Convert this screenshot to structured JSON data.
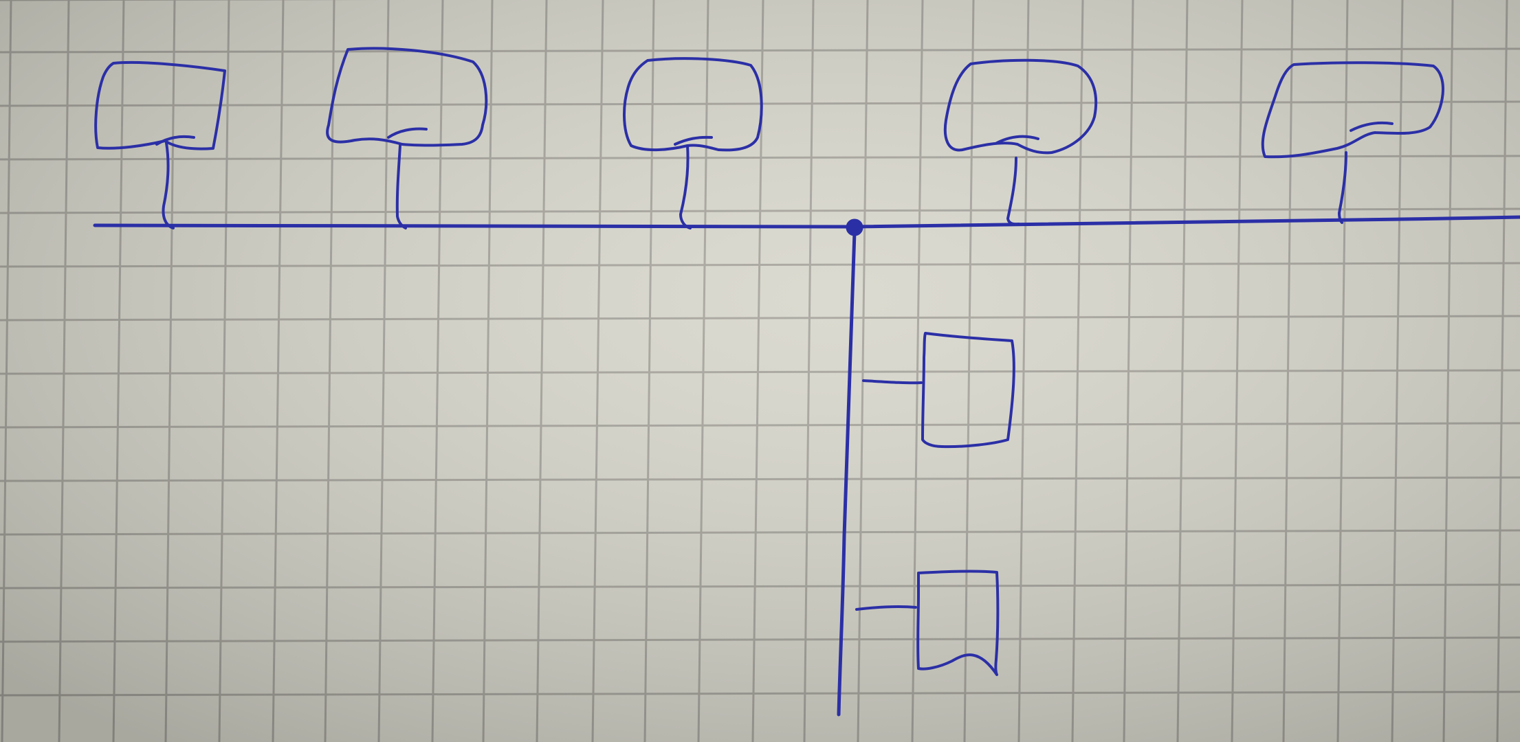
{
  "colors": {
    "paper": "#d8d7cc",
    "paper_shadow": "#9f9d92",
    "grid": "#a6a49c",
    "ink": "#2b2fa6"
  },
  "diagram": {
    "kind": "bus-topology-sketch",
    "main_bus": {
      "tapped_nodes": [
        {
          "id": "node-1",
          "shape": "flag-box"
        },
        {
          "id": "node-2",
          "shape": "flag-box"
        },
        {
          "id": "node-3",
          "shape": "flag-box"
        },
        {
          "id": "node-4",
          "shape": "flag-box"
        },
        {
          "id": "node-5",
          "shape": "flag-box"
        }
      ],
      "junction": {
        "id": "junction-dot",
        "style": "filled-circle"
      }
    },
    "branch_bus": {
      "direction": "down-from-junction",
      "tapped_nodes": [
        {
          "id": "node-6",
          "shape": "box"
        },
        {
          "id": "node-7",
          "shape": "box"
        }
      ]
    }
  }
}
